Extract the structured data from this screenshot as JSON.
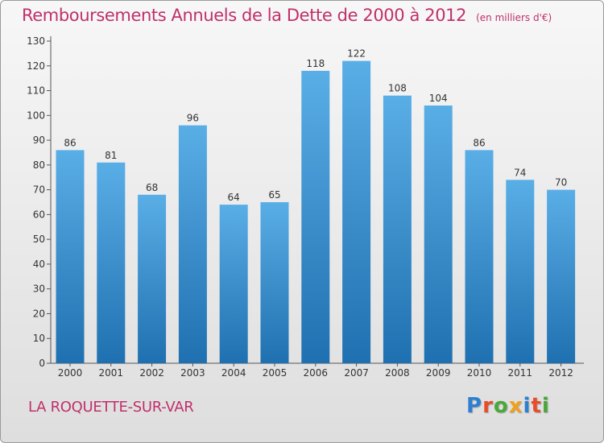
{
  "title": "Remboursements Annuels de la Dette de 2000 à 2012",
  "unit": "(en milliers d'€)",
  "commune": "LA ROQUETTE-SUR-VAR",
  "logo": {
    "letters": [
      "P",
      "r",
      "o",
      "x",
      "i",
      "t",
      "i"
    ],
    "colors": [
      "#2f7fd0",
      "#e84c2a",
      "#49a83a",
      "#f0a020",
      "#2f7fd0",
      "#e84c2a",
      "#49a83a"
    ]
  },
  "colors": {
    "accent": "#c0306a",
    "bar_top": "#5aaee6",
    "bar_bottom": "#1f70b0"
  },
  "chart_data": {
    "type": "bar",
    "title": "Remboursements Annuels de la Dette de 2000 à 2012",
    "xlabel": "",
    "ylabel": "",
    "categories": [
      "2000",
      "2001",
      "2002",
      "2003",
      "2004",
      "2005",
      "2006",
      "2007",
      "2008",
      "2009",
      "2010",
      "2011",
      "2012"
    ],
    "values": [
      86,
      81,
      68,
      96,
      64,
      65,
      118,
      122,
      108,
      104,
      86,
      74,
      70
    ],
    "ylim": [
      0,
      130
    ],
    "yticks": [
      0,
      10,
      20,
      30,
      40,
      50,
      60,
      70,
      80,
      90,
      100,
      110,
      120,
      130
    ],
    "grid": false
  }
}
